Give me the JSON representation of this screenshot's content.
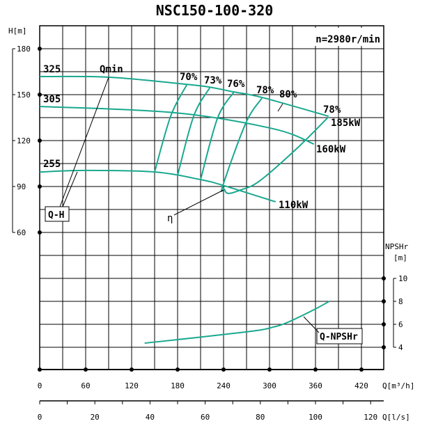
{
  "chart_data": {
    "type": "line",
    "title": "NSC150-100-320",
    "speed_label": "n=2980r/min",
    "xlabel": "Q[m³/h]",
    "xlabel2": "Q[l/s]",
    "ylabel": "H[m]",
    "ylabel2_line1": "NPSHr",
    "ylabel2_line2": "[m]",
    "xlim": [
      0,
      450
    ],
    "ylim": [
      -30,
      195
    ],
    "y2lim": [
      2,
      15.6
    ],
    "grid": true,
    "x_ticks": [
      0,
      60,
      120,
      180,
      240,
      300,
      360,
      420
    ],
    "x2_ticks": [
      0,
      20,
      40,
      60,
      80,
      100,
      120
    ],
    "y_ticks": [
      60,
      90,
      120,
      150,
      180
    ],
    "y2_ticks": [
      4,
      6,
      8,
      10
    ],
    "curve_color": "#1aa88f",
    "head_curves": [
      {
        "name": "325",
        "power": "185kW",
        "points": [
          [
            0,
            161.8
          ],
          [
            90,
            161.4
          ],
          [
            192,
            156.7
          ],
          [
            222,
            154.9
          ],
          [
            253,
            151.8
          ],
          [
            290,
            148.2
          ],
          [
            377,
            135.9
          ]
        ]
      },
      {
        "name": "305",
        "power": "160kW",
        "points": [
          [
            0,
            142.3
          ],
          [
            176,
            138.2
          ],
          [
            305,
            127.7
          ],
          [
            358,
            117.7
          ]
        ]
      },
      {
        "name": "255",
        "power": "110kW",
        "points": [
          [
            0,
            99.5
          ],
          [
            61,
            100.5
          ],
          [
            150,
            99.5
          ],
          [
            210,
            94.5
          ],
          [
            241,
            90.5
          ],
          [
            308,
            80
          ]
        ]
      }
    ],
    "efficiency_curves": [
      {
        "name": "70%",
        "points": [
          [
            150,
            99.5
          ],
          [
            171,
            136
          ],
          [
            192,
            156.4
          ]
        ]
      },
      {
        "name": "73%",
        "points": [
          [
            180,
            97.3
          ],
          [
            201,
            136
          ],
          [
            222,
            154.5
          ]
        ]
      },
      {
        "name": "76%",
        "points": [
          [
            210,
            94.5
          ],
          [
            232,
            134.5
          ],
          [
            253,
            151.4
          ]
        ]
      },
      {
        "name": "78%",
        "points": [
          [
            290,
            147.7
          ],
          [
            269,
            131.4
          ],
          [
            239,
            90.5
          ],
          [
            241,
            88.2
          ],
          [
            246,
            85.5
          ],
          [
            262,
            87.7
          ],
          [
            287,
            93.6
          ],
          [
            336,
            115
          ],
          [
            377,
            135.5
          ]
        ]
      }
    ],
    "best_efficiency_label": "80%",
    "efficiency_end_label": "78%",
    "npshr_curve": {
      "name": "Q-NPSHr",
      "points": [
        [
          137,
          4.36
        ],
        [
          269,
          5.33
        ],
        [
          305,
          5.76
        ],
        [
          326,
          6.24
        ],
        [
          358,
          7.27
        ],
        [
          378,
          8
        ]
      ]
    },
    "annotations": {
      "qh": "Q-H",
      "qmin": "Qmin",
      "eta": "η"
    }
  }
}
